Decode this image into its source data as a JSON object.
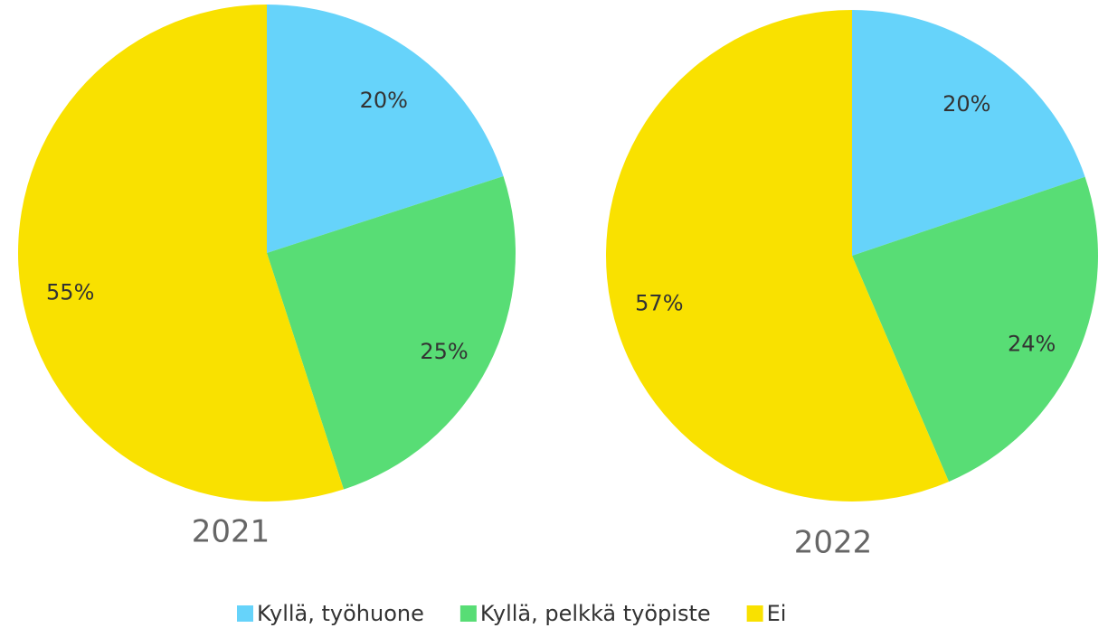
{
  "chart_data": [
    {
      "type": "pie",
      "title": "2021",
      "values": [
        20,
        25,
        55
      ],
      "value_labels": [
        "20%",
        "25%",
        "55%"
      ]
    },
    {
      "type": "pie",
      "title": "2022",
      "values": [
        20,
        24,
        57
      ],
      "value_labels": [
        "20%",
        "24%",
        "57%"
      ]
    }
  ],
  "legend": {
    "labels": [
      "Kyllä, työhuone",
      "Kyllä, pelkkä työpiste",
      "Ei"
    ],
    "colors": [
      "#66d3fa",
      "#58dd75",
      "#f9e100"
    ]
  }
}
